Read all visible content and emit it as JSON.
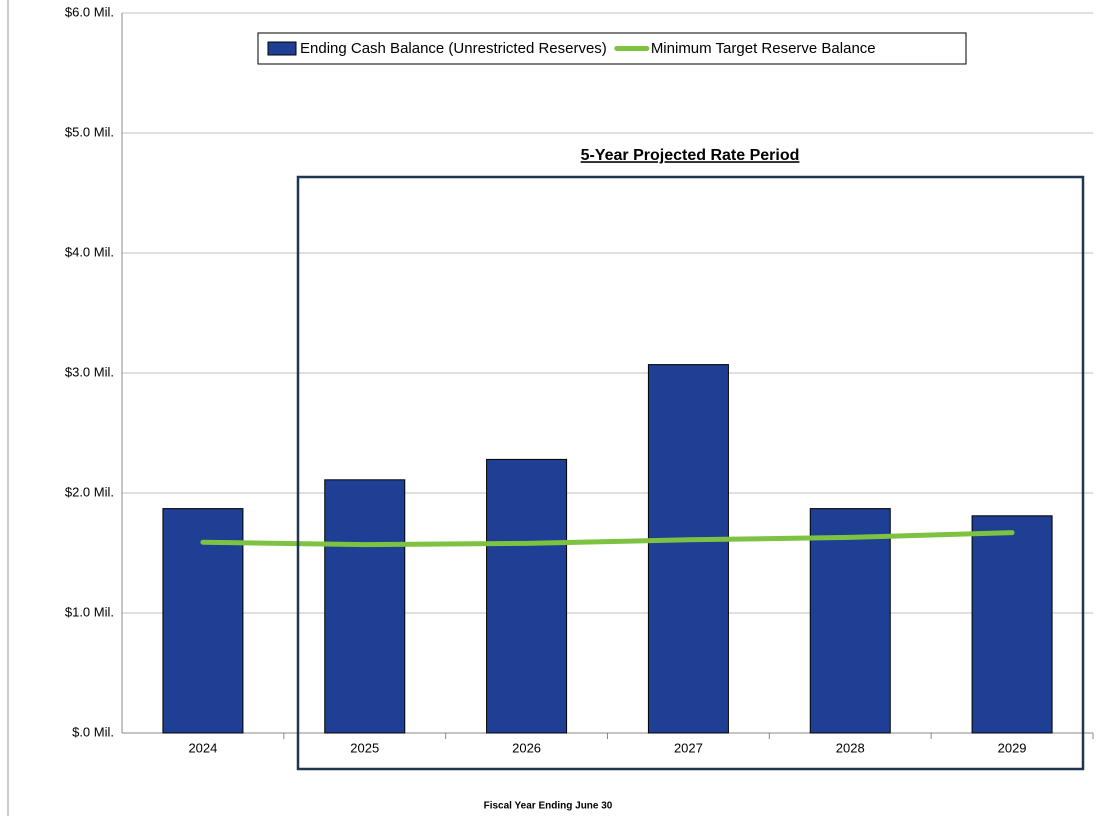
{
  "chart_data": {
    "type": "bar",
    "annotation": "5-Year Projected Rate Period",
    "x_label": "Fiscal Year Ending June 30",
    "categories": [
      "2024",
      "2025",
      "2026",
      "2027",
      "2028",
      "2029"
    ],
    "series": [
      {
        "name": "Ending Cash Balance (Unrestricted Reserves)",
        "type": "bar",
        "color": "#1f3f94",
        "values": [
          1.87,
          2.11,
          2.28,
          3.07,
          1.87,
          1.81
        ]
      },
      {
        "name": "Minimum Target Reserve Balance",
        "type": "line",
        "color": "#7ec242",
        "values": [
          1.59,
          1.57,
          1.58,
          1.61,
          1.63,
          1.67
        ]
      }
    ],
    "ylim": [
      0,
      6
    ],
    "yticks": [
      {
        "value": 0,
        "label": "$.0 Mil."
      },
      {
        "value": 1,
        "label": "$1.0 Mil."
      },
      {
        "value": 2,
        "label": "$2.0 Mil."
      },
      {
        "value": 3,
        "label": "$3.0 Mil."
      },
      {
        "value": 4,
        "label": "$4.0 Mil."
      },
      {
        "value": 5,
        "label": "$5.0 Mil."
      },
      {
        "value": 6,
        "label": "$6.0 Mil."
      }
    ],
    "grid": true
  }
}
